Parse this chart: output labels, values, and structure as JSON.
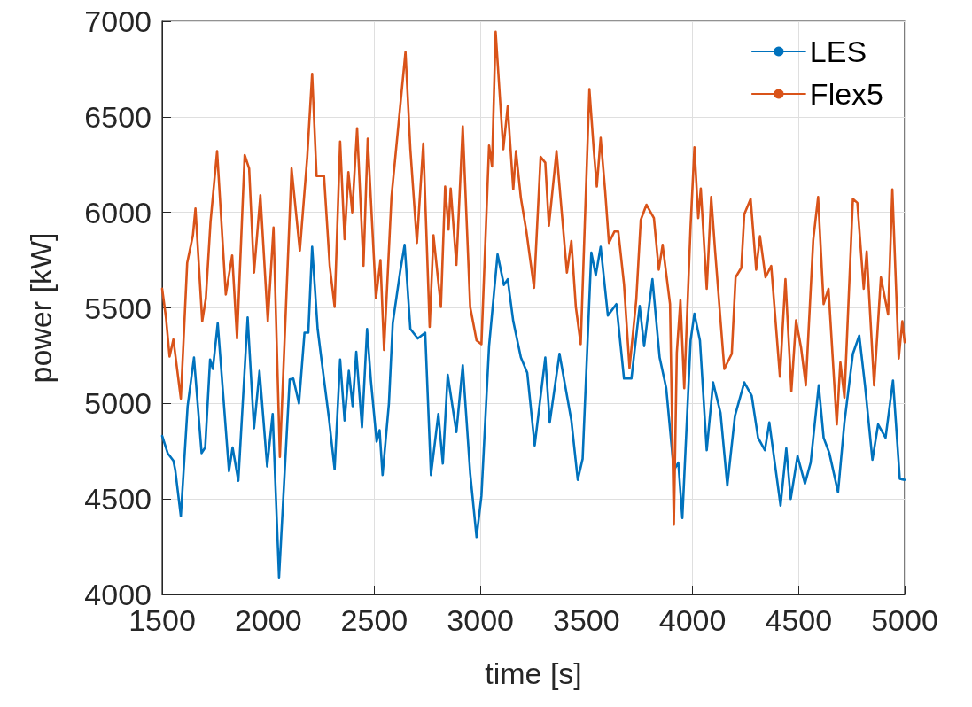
{
  "chart_data": {
    "type": "line",
    "xlabel": "time [s]",
    "ylabel": "power [kW]",
    "xlim": [
      1500,
      5000
    ],
    "xticks": [
      1500,
      2000,
      2500,
      3000,
      3500,
      4000,
      4500,
      5000
    ],
    "ylim": [
      4000,
      7000
    ],
    "yticks": [
      4000,
      4500,
      5000,
      5500,
      6000,
      6500,
      7000
    ],
    "grid": true,
    "legend": "top right",
    "marker": "none",
    "line_style": "solid",
    "series": [
      {
        "name": "LES",
        "color": "#0072bd",
        "x": [
          1500,
          1526,
          1553,
          1562,
          1588,
          1620,
          1650,
          1686,
          1703,
          1726,
          1739,
          1762,
          1815,
          1832,
          1859,
          1903,
          1933,
          1959,
          1995,
          2021,
          2051,
          2101,
          2118,
          2145,
          2171,
          2189,
          2207,
          2233,
          2251,
          2286,
          2313,
          2339,
          2360,
          2380,
          2398,
          2415,
          2442,
          2466,
          2484,
          2511,
          2525,
          2539,
          2569,
          2587,
          2622,
          2643,
          2670,
          2705,
          2740,
          2767,
          2802,
          2823,
          2846,
          2887,
          2917,
          2952,
          2982,
          3005,
          3041,
          3081,
          3111,
          3129,
          3155,
          3191,
          3221,
          3256,
          3306,
          3327,
          3373,
          3429,
          3459,
          3482,
          3523,
          3544,
          3567,
          3601,
          3641,
          3677,
          3712,
          3751,
          3772,
          3811,
          3845,
          3876,
          3912,
          3933,
          3952,
          3991,
          4009,
          4035,
          4067,
          4097,
          4132,
          4164,
          4200,
          4244,
          4279,
          4309,
          4341,
          4362,
          4415,
          4442,
          4463,
          4495,
          4530,
          4557,
          4595,
          4618,
          4645,
          4686,
          4716,
          4756,
          4786,
          4813,
          4848,
          4875,
          4910,
          4945,
          4977,
          5000
        ],
        "values": [
          4830,
          4740,
          4700,
          4650,
          4410,
          4985,
          5240,
          4740,
          4770,
          5230,
          5180,
          5420,
          4645,
          4770,
          4595,
          5450,
          4870,
          5170,
          4670,
          4945,
          4090,
          5125,
          5130,
          5000,
          5370,
          5370,
          5820,
          5390,
          5230,
          4925,
          4655,
          5230,
          4910,
          5170,
          4985,
          5270,
          4875,
          5390,
          5120,
          4800,
          4860,
          4625,
          5000,
          5420,
          5690,
          5830,
          5390,
          5340,
          5370,
          4625,
          4945,
          4685,
          5150,
          4850,
          5200,
          4635,
          4300,
          4515,
          5300,
          5780,
          5620,
          5650,
          5430,
          5240,
          5160,
          4780,
          5240,
          4900,
          5260,
          4910,
          4600,
          4710,
          5790,
          5670,
          5820,
          5460,
          5520,
          5130,
          5130,
          5510,
          5300,
          5650,
          5240,
          5080,
          4650,
          4690,
          4400,
          5330,
          5470,
          5330,
          4755,
          5110,
          4950,
          4570,
          4935,
          5110,
          5040,
          4820,
          4755,
          4900,
          4465,
          4765,
          4500,
          4725,
          4580,
          4690,
          5095,
          4820,
          4740,
          4535,
          4900,
          5260,
          5355,
          5095,
          4705,
          4890,
          4820,
          5120,
          4605,
          4600
        ]
      },
      {
        "name": "Flex5",
        "color": "#d95319",
        "x": [
          1500,
          1518,
          1535,
          1553,
          1588,
          1618,
          1645,
          1657,
          1689,
          1706,
          1728,
          1759,
          1800,
          1830,
          1853,
          1889,
          1910,
          1933,
          1963,
          1998,
          2025,
          2055,
          2110,
          2149,
          2184,
          2207,
          2228,
          2263,
          2290,
          2313,
          2339,
          2360,
          2378,
          2396,
          2419,
          2449,
          2469,
          2508,
          2529,
          2546,
          2581,
          2617,
          2647,
          2670,
          2701,
          2731,
          2761,
          2779,
          2814,
          2834,
          2850,
          2860,
          2887,
          2917,
          2952,
          2982,
          3005,
          3041,
          3055,
          3072,
          3108,
          3129,
          3155,
          3168,
          3191,
          3217,
          3253,
          3284,
          3306,
          3323,
          3359,
          3408,
          3429,
          3450,
          3473,
          3514,
          3535,
          3549,
          3567,
          3588,
          3606,
          3632,
          3650,
          3677,
          3703,
          3735,
          3756,
          3783,
          3818,
          3841,
          3859,
          3894,
          3912,
          3926,
          3943,
          3961,
          3991,
          4009,
          4027,
          4039,
          4067,
          4088,
          4106,
          4150,
          4185,
          4203,
          4230,
          4244,
          4274,
          4300,
          4318,
          4344,
          4371,
          4412,
          4438,
          4466,
          4488,
          4512,
          4534,
          4569,
          4592,
          4618,
          4641,
          4680,
          4697,
          4716,
          4756,
          4777,
          4807,
          4821,
          4856,
          4888,
          4922,
          4942,
          4972,
          4989,
          5000
        ],
        "values": [
          5600,
          5450,
          5245,
          5335,
          5025,
          5735,
          5880,
          6020,
          5430,
          5550,
          5950,
          6320,
          5570,
          5775,
          5340,
          6300,
          6230,
          5685,
          6090,
          5430,
          5920,
          4720,
          6230,
          5800,
          6290,
          6725,
          6190,
          6190,
          5720,
          5505,
          6370,
          5860,
          6210,
          6000,
          6440,
          5720,
          6385,
          5550,
          5750,
          5280,
          6080,
          6495,
          6840,
          6330,
          5840,
          6360,
          5400,
          5880,
          5505,
          6135,
          5910,
          6125,
          5725,
          6450,
          5505,
          5330,
          5310,
          6350,
          6240,
          6945,
          6330,
          6555,
          6120,
          6320,
          6075,
          5900,
          5605,
          6290,
          6260,
          5930,
          6320,
          5685,
          5850,
          5505,
          5310,
          6645,
          6320,
          6135,
          6390,
          6115,
          5840,
          5900,
          5900,
          5625,
          5185,
          5545,
          5960,
          6040,
          5970,
          5700,
          5830,
          5520,
          4365,
          5265,
          5540,
          5080,
          5930,
          6340,
          5970,
          6125,
          5600,
          6080,
          5805,
          5180,
          5260,
          5660,
          5710,
          5990,
          6070,
          5700,
          5875,
          5660,
          5720,
          5140,
          5650,
          5065,
          5435,
          5290,
          5095,
          5855,
          6080,
          5520,
          5600,
          4890,
          5215,
          5030,
          6070,
          6050,
          5600,
          5795,
          5095,
          5660,
          5465,
          6120,
          5235,
          5430,
          5320
        ]
      }
    ]
  }
}
